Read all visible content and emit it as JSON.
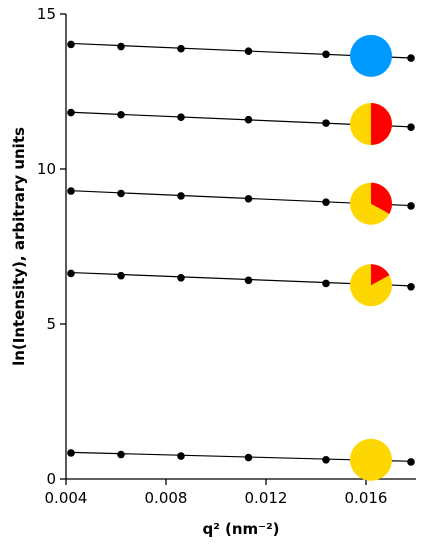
{
  "chart_data": {
    "type": "scatter",
    "xlabel": "q² (nm⁻²)",
    "ylabel": "ln(Intensity), arbitrary units",
    "xlim": [
      0.004,
      0.018
    ],
    "ylim": [
      0,
      15
    ],
    "xticks": [
      0.004,
      0.008,
      0.012,
      0.016
    ],
    "xtick_labels": [
      "0.004",
      "0.008",
      "0.012",
      "0.016"
    ],
    "yticks": [
      0,
      5,
      10,
      15
    ],
    "ytick_labels": [
      "0",
      "5",
      "10",
      "15"
    ],
    "grid": false,
    "x": [
      0.0042,
      0.0062,
      0.0086,
      0.0113,
      0.0144,
      0.0178
    ],
    "series": [
      {
        "values": [
          14.02,
          13.95,
          13.88,
          13.8,
          13.7,
          13.58
        ],
        "fit": [
          14.05,
          13.58
        ]
      },
      {
        "values": [
          11.82,
          11.75,
          11.67,
          11.59,
          11.48,
          11.35
        ],
        "fit": [
          11.83,
          11.36
        ]
      },
      {
        "values": [
          9.29,
          9.21,
          9.13,
          9.04,
          8.93,
          8.81
        ],
        "fit": [
          9.3,
          8.82
        ]
      },
      {
        "values": [
          6.63,
          6.56,
          6.49,
          6.41,
          6.31,
          6.2
        ],
        "fit": [
          6.66,
          6.23
        ]
      },
      {
        "values": [
          0.84,
          0.79,
          0.74,
          0.69,
          0.62,
          0.55
        ],
        "fit": [
          0.86,
          0.57
        ]
      }
    ],
    "composition_markers": [
      {
        "x": 0.0162,
        "y": 13.65,
        "red_fraction": 0.0,
        "blue_fraction": 1.0
      },
      {
        "x": 0.0162,
        "y": 11.45,
        "red_fraction": 0.5,
        "blue_fraction": 0.0
      },
      {
        "x": 0.0162,
        "y": 8.88,
        "red_fraction": 0.33,
        "blue_fraction": 0.0
      },
      {
        "x": 0.0162,
        "y": 6.25,
        "red_fraction": 0.17,
        "blue_fraction": 0.0
      },
      {
        "x": 0.0162,
        "y": 0.62,
        "red_fraction": 0.0,
        "blue_fraction": 0.0
      }
    ],
    "colors": {
      "points": "#000000",
      "fit_line": "#000000",
      "marker_yellow": "#FFD700",
      "marker_red": "#FF0000",
      "marker_blue": "#0099FF"
    }
  }
}
